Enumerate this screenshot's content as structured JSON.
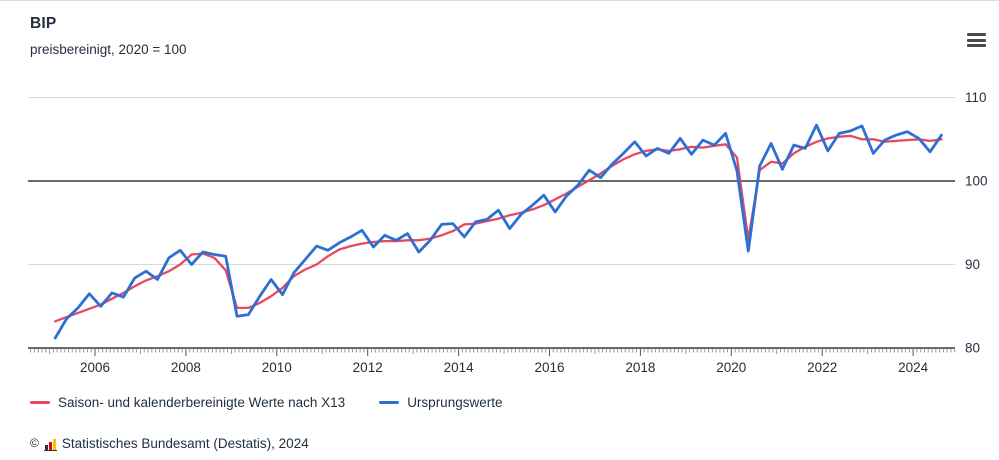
{
  "header": {
    "title": "BIP",
    "subtitle": "preisbereinigt, 2020 = 100"
  },
  "menu": {
    "icon": "hamburger-menu-icon"
  },
  "chart_data": {
    "type": "line",
    "title": "BIP",
    "subtitle": "preisbereinigt, 2020 = 100",
    "x_unit": "quarterly, 2005 Q1 - 2024 Q3",
    "x_start_year": 2005,
    "xticks": [
      2006,
      2008,
      2010,
      2012,
      2014,
      2016,
      2018,
      2020,
      2022,
      2024
    ],
    "ylim": [
      80,
      110
    ],
    "yticks": [
      {
        "value": 80,
        "role": "axis"
      },
      {
        "value": 90,
        "role": "grid"
      },
      {
        "value": 100,
        "role": "baseline"
      },
      {
        "value": 110,
        "role": "grid"
      }
    ],
    "grid": "horizontal",
    "legend_position": "bottom",
    "series": [
      {
        "name": "Saison- und kalenderbereinigte Werte nach X13",
        "color": "#e8485f",
        "values": [
          83.2,
          83.7,
          84.2,
          84.7,
          85.2,
          85.9,
          86.6,
          87.4,
          88.1,
          88.6,
          89.2,
          90.0,
          91.2,
          91.3,
          90.8,
          89.3,
          84.8,
          84.8,
          85.4,
          86.2,
          87.2,
          88.6,
          89.4,
          90.0,
          91.0,
          91.8,
          92.2,
          92.5,
          92.7,
          92.8,
          92.8,
          92.9,
          92.9,
          93.1,
          93.5,
          94.0,
          94.8,
          94.9,
          95.2,
          95.5,
          95.9,
          96.2,
          96.6,
          97.1,
          97.8,
          98.5,
          99.3,
          100.1,
          100.9,
          101.8,
          102.6,
          103.2,
          103.6,
          103.8,
          103.6,
          103.8,
          104.1,
          104.0,
          104.2,
          104.4,
          102.8,
          93.0,
          101.3,
          102.3,
          102.1,
          103.3,
          104.1,
          104.7,
          105.1,
          105.3,
          105.4,
          105.0,
          105.0,
          104.7,
          104.8,
          104.9,
          105.0,
          104.8,
          105.0
        ]
      },
      {
        "name": "Ursprungswerte",
        "color": "#2e6fd3",
        "values": [
          81.2,
          83.5,
          84.8,
          86.5,
          85.0,
          86.6,
          86.1,
          88.4,
          89.2,
          88.2,
          90.8,
          91.7,
          90.0,
          91.5,
          91.2,
          91.0,
          83.8,
          84.0,
          86.2,
          88.2,
          86.4,
          89.0,
          90.6,
          92.2,
          91.7,
          92.6,
          93.3,
          94.1,
          92.1,
          93.5,
          92.9,
          93.7,
          91.5,
          92.9,
          94.8,
          94.9,
          93.3,
          95.1,
          95.4,
          96.5,
          94.3,
          96.0,
          97.1,
          98.3,
          96.3,
          98.2,
          99.5,
          101.3,
          100.4,
          102.0,
          103.3,
          104.7,
          103.0,
          103.9,
          103.3,
          105.1,
          103.2,
          104.9,
          104.3,
          105.7,
          101.2,
          91.6,
          101.8,
          104.5,
          101.4,
          104.3,
          103.9,
          106.7,
          103.6,
          105.7,
          106.0,
          106.6,
          103.3,
          104.9,
          105.5,
          105.9,
          105.1,
          103.5,
          105.5
        ]
      }
    ]
  },
  "legend": {
    "items": [
      {
        "label": "Saison- und kalenderbereinigte Werte nach X13",
        "color": "#e8485f"
      },
      {
        "label": "Ursprungswerte",
        "color": "#2e6fd3"
      }
    ]
  },
  "footer": {
    "copyright": "©",
    "source": "Statistisches Bundesamt (Destatis), 2024",
    "logo_colors": [
      "#333333",
      "#e2001a",
      "#f7c600"
    ]
  },
  "colors": {
    "text": "#22303f",
    "grid_minor": "#d9d9d9",
    "grid_major": "#3a3a3a",
    "tick_minor": "#999999",
    "tick_major": "#555555"
  }
}
